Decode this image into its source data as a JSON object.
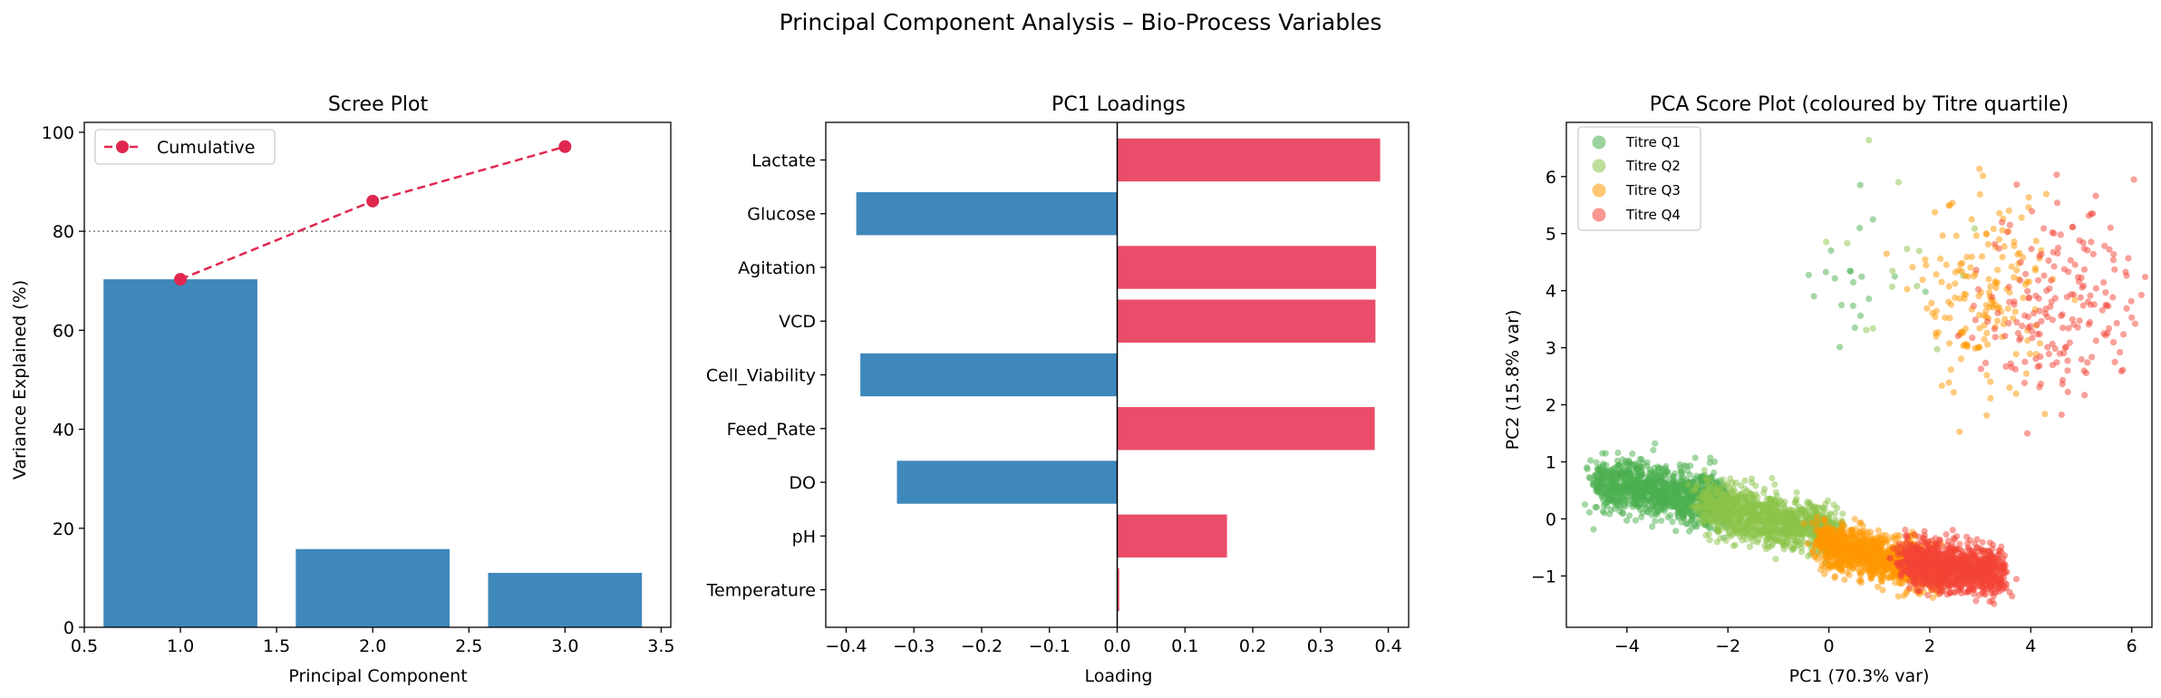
{
  "suptitle": "Principal Component Analysis – Bio-Process Variables",
  "colors": {
    "bar_blue": "#3f88bb",
    "bar_red": "#ea4d69",
    "cumulative": "#e0284f",
    "q1": "#4caf50",
    "q2": "#8bc34a",
    "q3": "#ff9800",
    "q4": "#f44336"
  },
  "chart_data": [
    {
      "id": "scree",
      "type": "bar",
      "title": "Scree Plot",
      "xlabel": "Principal Component",
      "ylabel": "Variance Explained (%)",
      "x": [
        1,
        2,
        3
      ],
      "values": [
        70.3,
        15.8,
        11.0
      ],
      "cumulative": {
        "name": "Cumulative",
        "values": [
          70.3,
          86.1,
          97.1
        ]
      },
      "reference_line": 80,
      "xlim": [
        0.5,
        3.55
      ],
      "ylim": [
        0,
        102
      ],
      "xticks": [
        "0.5",
        "1.0",
        "1.5",
        "2.0",
        "2.5",
        "3.0",
        "3.5"
      ],
      "yticks": [
        "0",
        "20",
        "40",
        "60",
        "80",
        "100"
      ],
      "legend_position": "upper-left"
    },
    {
      "id": "loadings",
      "type": "bar",
      "orientation": "horizontal",
      "title": "PC1 Loadings",
      "xlabel": "Loading",
      "categories": [
        "Lactate",
        "Glucose",
        "Agitation",
        "VCD",
        "Cell_Viability",
        "Feed_Rate",
        "DO",
        "pH",
        "Temperature"
      ],
      "values": [
        0.388,
        -0.385,
        0.382,
        0.381,
        -0.379,
        0.38,
        -0.325,
        0.162,
        0.003
      ],
      "xlim": [
        -0.43,
        0.43
      ],
      "xticks": [
        "−0.4",
        "−0.3",
        "−0.2",
        "−0.1",
        "0.0",
        "0.1",
        "0.2",
        "0.3",
        "0.4"
      ]
    },
    {
      "id": "scores",
      "type": "scatter",
      "title": "PCA Score Plot (coloured by Titre quartile)",
      "xlabel": "PC1 (70.3% var)",
      "ylabel": "PC2 (15.8% var)",
      "xlim": [
        -5.2,
        6.4
      ],
      "ylim": [
        -1.9,
        6.95
      ],
      "xticks": [
        "−4",
        "−2",
        "0",
        "2",
        "4",
        "6"
      ],
      "yticks": [
        "−1",
        "0",
        "1",
        "2",
        "3",
        "4",
        "5",
        "6"
      ],
      "legend_position": "upper-left",
      "series": [
        {
          "name": "Titre Q1",
          "clusters": [
            {
              "n": 1200,
              "x_range": [
                -4.6,
                -2.1
              ],
              "y_at_start": 0.65,
              "y_at_end": 0.3,
              "spread": 0.22
            },
            {
              "n": 20,
              "cx": 0.2,
              "cy": 4.2,
              "sx": 0.6,
              "sy": 0.8
            }
          ]
        },
        {
          "name": "Titre Q2",
          "clusters": [
            {
              "n": 1200,
              "x_range": [
                -2.5,
                0.2
              ],
              "y_at_start": 0.25,
              "y_at_end": -0.25,
              "spread": 0.22
            },
            {
              "n": 14,
              "cx": 1.1,
              "cy": 4.6,
              "sx": 0.6,
              "sy": 0.8
            }
          ]
        },
        {
          "name": "Titre Q3",
          "clusters": [
            {
              "n": 1200,
              "x_range": [
                -0.2,
                2.1
              ],
              "y_at_start": -0.4,
              "y_at_end": -0.9,
              "spread": 0.2
            },
            {
              "n": 170,
              "cx": 3.1,
              "cy": 3.9,
              "sx": 0.65,
              "sy": 0.85
            }
          ]
        },
        {
          "name": "Titre Q4",
          "clusters": [
            {
              "n": 1200,
              "x_range": [
                1.5,
                3.4
              ],
              "y_at_start": -0.75,
              "y_at_end": -0.95,
              "spread": 0.2
            },
            {
              "n": 190,
              "cx": 4.6,
              "cy": 3.8,
              "sx": 0.75,
              "sy": 0.9
            }
          ]
        }
      ]
    }
  ]
}
